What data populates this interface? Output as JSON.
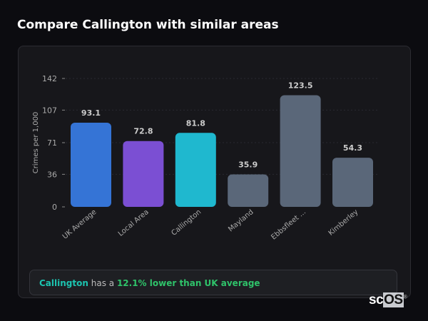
{
  "header": {
    "title": "Compare Callington with similar areas"
  },
  "chart_data": {
    "type": "bar",
    "categories": [
      "UK Average",
      "Local Area",
      "Callington",
      "Mayland",
      "Ebbsfleet ...",
      "Kimberley"
    ],
    "values": [
      93.1,
      72.8,
      81.8,
      35.9,
      123.5,
      54.3
    ],
    "value_labels": [
      "93.1",
      "72.8",
      "81.8",
      "35.9",
      "123.5",
      "54.3"
    ],
    "colors": [
      "#3574d6",
      "#7b4fd3",
      "#1fb8cf",
      "#5a6779",
      "#5a6779",
      "#5a6779"
    ],
    "ylabel": "Crimes per 1,000",
    "xlabel": "",
    "yticks": [
      0,
      36,
      71,
      107,
      142
    ],
    "ylim": [
      0,
      142
    ],
    "grid": true
  },
  "summary": {
    "area": "Callington",
    "middle": "has a",
    "comparison": "12.1% lower than UK average"
  },
  "logo": {
    "text_a": "sc",
    "text_b": "OS",
    "mark": "®"
  }
}
